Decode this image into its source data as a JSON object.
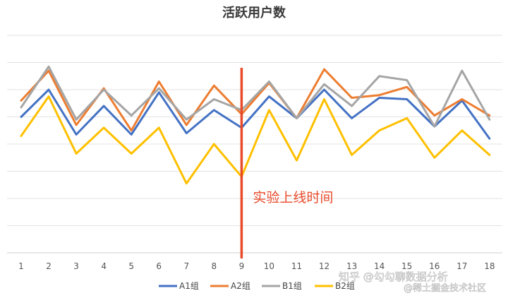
{
  "chart_data": {
    "type": "line",
    "title": "活跃用户数",
    "xlabel": "",
    "ylabel": "",
    "x": [
      1,
      2,
      3,
      4,
      5,
      6,
      7,
      8,
      9,
      10,
      11,
      12,
      13,
      14,
      15,
      16,
      17,
      18
    ],
    "ylim": [
      0,
      8
    ],
    "grid": true,
    "legend_position": "bottom",
    "series": [
      {
        "name": "A1组",
        "color": "#4472c4",
        "values": [
          5.0,
          6.0,
          4.35,
          5.4,
          4.35,
          5.9,
          4.4,
          5.25,
          4.6,
          5.75,
          4.95,
          6.0,
          4.95,
          5.7,
          5.65,
          4.65,
          5.6,
          4.2
        ]
      },
      {
        "name": "A2组",
        "color": "#ed7d31",
        "values": [
          5.6,
          6.7,
          4.7,
          6.05,
          4.5,
          6.3,
          4.7,
          6.15,
          5.1,
          6.25,
          4.95,
          6.75,
          5.7,
          5.8,
          6.1,
          5.05,
          5.65,
          5.05
        ]
      },
      {
        "name": "B1组",
        "color": "#a5a5a5",
        "values": [
          5.35,
          6.85,
          4.9,
          6.0,
          5.05,
          6.05,
          4.9,
          5.65,
          5.25,
          6.3,
          4.95,
          6.2,
          5.4,
          6.5,
          6.35,
          4.65,
          6.7,
          4.9
        ]
      },
      {
        "name": "B2组",
        "color": "#ffc000",
        "values": [
          4.3,
          5.75,
          3.65,
          4.6,
          3.65,
          4.6,
          2.55,
          4.0,
          2.8,
          5.25,
          3.4,
          5.65,
          3.6,
          4.5,
          4.95,
          3.5,
          4.5,
          3.6
        ]
      }
    ],
    "marker_line": {
      "x": 9,
      "color": "#e84a2a",
      "label": "实验上线时间"
    }
  },
  "watermark": {
    "text": "知乎 @勾勾聊数据分析",
    "text2": "@稀土掘金技术社区"
  }
}
